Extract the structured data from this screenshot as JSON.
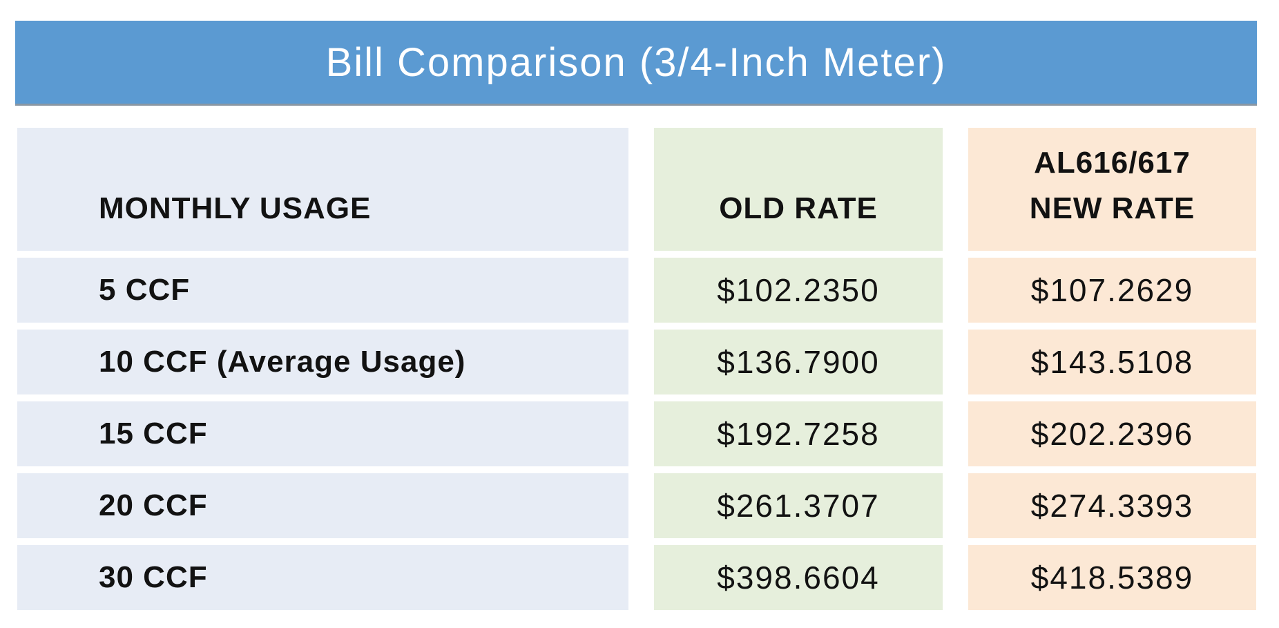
{
  "title": "Bill Comparison (3/4-Inch Meter)",
  "table": {
    "headers": {
      "usage": "MONTHLY USAGE",
      "old_rate": "OLD RATE",
      "new_rate": "AL616/617\nNEW RATE"
    },
    "rows": [
      {
        "usage": "5 CCF",
        "old_rate": "$102.2350",
        "new_rate": "$107.2629"
      },
      {
        "usage": "10 CCF (Average Usage)",
        "old_rate": "$136.7900",
        "new_rate": "$143.5108"
      },
      {
        "usage": "15 CCF",
        "old_rate": "$192.7258",
        "new_rate": "$202.2396"
      },
      {
        "usage": "20 CCF",
        "old_rate": "$261.3707",
        "new_rate": "$274.3393"
      },
      {
        "usage": "30 CCF",
        "old_rate": "$398.6604",
        "new_rate": "$418.5389"
      }
    ]
  },
  "colors": {
    "banner-bg": "#5b9ad2",
    "banner-border": "#8a97a3",
    "title-text": "#ffffff",
    "usage-col-bg": "#e7ecf5",
    "old-col-bg": "#e6efdc",
    "new-col-bg": "#fce8d5",
    "body-text": "#121212"
  },
  "chart_data": {
    "type": "table",
    "title": "Bill Comparison (3/4-Inch Meter)",
    "columns": [
      "MONTHLY USAGE",
      "OLD RATE",
      "AL616/617 NEW RATE"
    ],
    "rows": [
      [
        "5 CCF",
        "$102.2350",
        "$107.2629"
      ],
      [
        "10 CCF (Average Usage)",
        "$136.7900",
        "$143.5108"
      ],
      [
        "15 CCF",
        "$192.7258",
        "$202.2396"
      ],
      [
        "20 CCF",
        "$261.3707",
        "$274.3393"
      ],
      [
        "30 CCF",
        "$398.6604",
        "$418.5389"
      ]
    ]
  }
}
